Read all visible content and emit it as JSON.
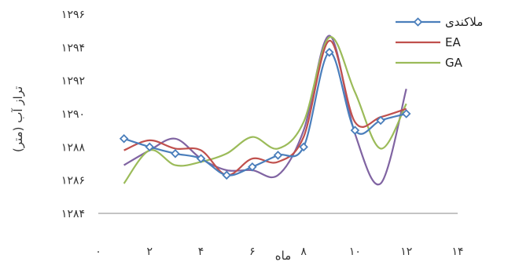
{
  "chart_data": {
    "type": "line",
    "xlabel": "ماه",
    "ylabel": "تراز آب (متر)",
    "xlim": [
      0,
      14
    ],
    "ylim": [
      1284,
      1296
    ],
    "x_ticks": [
      0,
      2,
      4,
      6,
      8,
      10,
      12,
      14
    ],
    "x_tick_labels": [
      "۰",
      "۲",
      "۴",
      "۶",
      "۸",
      "۱۰",
      "۱۲",
      "۱۴"
    ],
    "y_ticks": [
      1284,
      1286,
      1288,
      1290,
      1292,
      1294,
      1296
    ],
    "y_tick_labels": [
      "۱۲۸۴",
      "۱۲۸۶",
      "۱۲۸۸",
      "۱۲۹۰",
      "۱۲۹۲",
      "۱۲۹۴",
      "۱۲۹۶"
    ],
    "grid": false,
    "legend_position": "top-right",
    "x": [
      1,
      2,
      3,
      4,
      5,
      6,
      7,
      8,
      9,
      10,
      11,
      12
    ],
    "series": [
      {
        "name": "ملاکندی",
        "color": "#4a7ebb",
        "marker": "diamond",
        "values": [
          1288.5,
          1288.0,
          1287.6,
          1287.3,
          1286.3,
          1286.8,
          1287.5,
          1288.0,
          1293.7,
          1289.0,
          1289.6,
          1290.0
        ]
      },
      {
        "name": "EA",
        "color": "#c0504d",
        "marker": "none",
        "values": [
          1287.8,
          1288.4,
          1287.9,
          1287.8,
          1286.3,
          1287.3,
          1287.1,
          1288.6,
          1294.4,
          1289.5,
          1289.8,
          1290.3
        ]
      },
      {
        "name": "GA",
        "color": "#9bbb59",
        "marker": "none",
        "values": [
          1285.8,
          1287.8,
          1286.9,
          1287.1,
          1287.6,
          1288.6,
          1287.9,
          1289.5,
          1294.6,
          1291.3,
          1287.9,
          1290.6
        ]
      },
      {
        "name": "",
        "color": "#8064a2",
        "marker": "none",
        "values": [
          1286.9,
          1287.8,
          1288.5,
          1287.3,
          1286.6,
          1286.6,
          1286.3,
          1289.0,
          1294.7,
          1288.8,
          1285.8,
          1291.5
        ]
      }
    ]
  }
}
